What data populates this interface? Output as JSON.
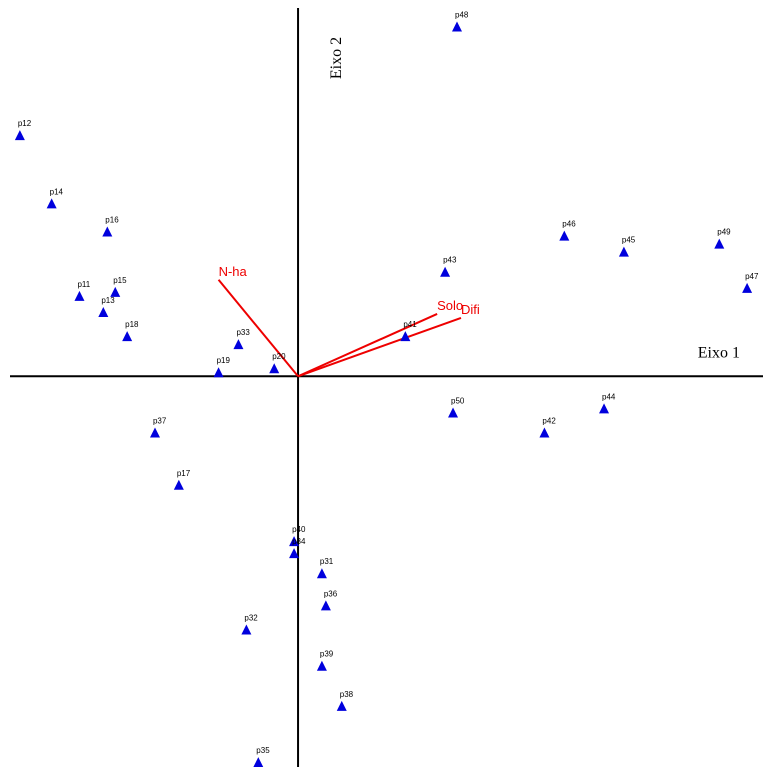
{
  "chart_data": {
    "type": "scatter",
    "title": "",
    "xlabel": "Eixo 1",
    "ylabel": "Eixo 2",
    "xlim": [
      -7.5,
      11.7
    ],
    "ylim": [
      -9.72,
      9.36
    ],
    "grid": false,
    "legend": "none",
    "colors": {
      "points": "#0000dd",
      "vectors": "#ee0000",
      "axes": "#000000"
    },
    "points": [
      {
        "name": "p12",
        "x": -7.0,
        "y": 6.0
      },
      {
        "name": "p14",
        "x": -6.2,
        "y": 4.3
      },
      {
        "name": "p16",
        "x": -4.8,
        "y": 3.6
      },
      {
        "name": "p11",
        "x": -5.5,
        "y": 2.0
      },
      {
        "name": "p15",
        "x": -4.6,
        "y": 2.1
      },
      {
        "name": "p13",
        "x": -4.9,
        "y": 1.6
      },
      {
        "name": "p18",
        "x": -4.3,
        "y": 1.0
      },
      {
        "name": "p33",
        "x": -1.5,
        "y": 0.8
      },
      {
        "name": "p19",
        "x": -2.0,
        "y": 0.1
      },
      {
        "name": "p20",
        "x": -0.6,
        "y": 0.2
      },
      {
        "name": "p48",
        "x": 4.0,
        "y": 8.7
      },
      {
        "name": "p46",
        "x": 6.7,
        "y": 3.5
      },
      {
        "name": "p45",
        "x": 8.2,
        "y": 3.1
      },
      {
        "name": "p49",
        "x": 10.6,
        "y": 3.3
      },
      {
        "name": "p47",
        "x": 11.3,
        "y": 2.2
      },
      {
        "name": "p43",
        "x": 3.7,
        "y": 2.6
      },
      {
        "name": "p41",
        "x": 2.7,
        "y": 1.0
      },
      {
        "name": "p50",
        "x": 3.9,
        "y": -0.9
      },
      {
        "name": "p42",
        "x": 6.2,
        "y": -1.4
      },
      {
        "name": "p44",
        "x": 7.7,
        "y": -0.8
      },
      {
        "name": "p37",
        "x": -3.6,
        "y": -1.4
      },
      {
        "name": "p17",
        "x": -3.0,
        "y": -2.7
      },
      {
        "name": "p40",
        "x": -0.1,
        "y": -4.1
      },
      {
        "name": "p34",
        "x": -0.1,
        "y": -4.4
      },
      {
        "name": "p31",
        "x": 0.6,
        "y": -4.9
      },
      {
        "name": "p36",
        "x": 0.7,
        "y": -5.7
      },
      {
        "name": "p32",
        "x": -1.3,
        "y": -6.3
      },
      {
        "name": "p39",
        "x": 0.6,
        "y": -7.2
      },
      {
        "name": "p38",
        "x": 1.1,
        "y": -8.2
      },
      {
        "name": "p35",
        "x": -1.0,
        "y": -9.6
      }
    ],
    "vectors": [
      {
        "name": "N-ha",
        "x": -2.0,
        "y": 2.4
      },
      {
        "name": "Solo",
        "x": 3.5,
        "y": 1.55
      },
      {
        "name": "Difi",
        "x": 4.1,
        "y": 1.45
      }
    ]
  }
}
